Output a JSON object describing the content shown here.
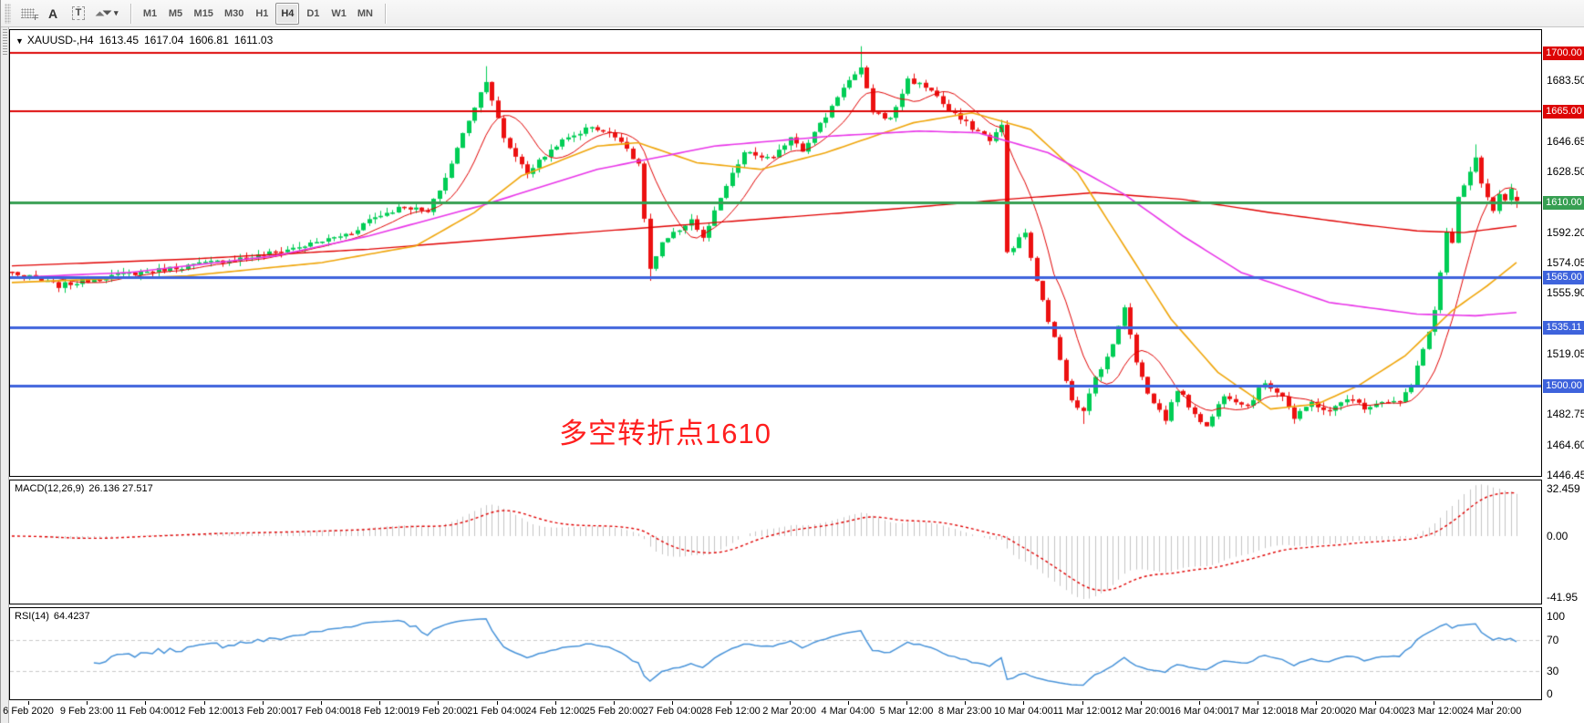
{
  "toolbar": {
    "tool_a_label": "A",
    "tool_t_label": "T",
    "timeframes": [
      "M1",
      "M5",
      "M15",
      "M30",
      "H1",
      "H4",
      "D1",
      "W1",
      "MN"
    ],
    "active_timeframe": "H4"
  },
  "chart": {
    "title": {
      "symbol": "XAUUSD-,H4",
      "open": "1613.45",
      "high": "1617.04",
      "low": "1606.81",
      "close": "1611.03"
    },
    "annotation": {
      "text": "多空转折点1610",
      "color": "#ff1e1e"
    },
    "price_axis": {
      "ticks": [
        "1683.50",
        "1646.65",
        "1628.50",
        "1592.20",
        "1574.05",
        "1555.90",
        "1519.05",
        "1482.75",
        "1464.60",
        "1446.45"
      ]
    },
    "time_axis": {
      "labels": [
        "6 Feb 2020",
        "9 Feb 23:00",
        "11 Feb 04:00",
        "12 Feb 12:00",
        "13 Feb 20:00",
        "17 Feb 04:00",
        "18 Feb 12:00",
        "19 Feb 20:00",
        "21 Feb 04:00",
        "24 Feb 12:00",
        "25 Feb 20:00",
        "27 Feb 04:00",
        "28 Feb 12:00",
        "2 Mar 20:00",
        "4 Mar 04:00",
        "5 Mar 12:00",
        "8 Mar 23:00",
        "10 Mar 04:00",
        "11 Mar 12:00",
        "12 Mar 20:00",
        "16 Mar 04:00",
        "17 Mar 12:00",
        "18 Mar 20:00",
        "20 Mar 04:00",
        "23 Mar 12:00",
        "24 Mar 20:00"
      ]
    },
    "macd_pane": {
      "label": "MACD(12,26,9)",
      "values": "26.136 27.517",
      "scale": [
        "32.459",
        "0.00",
        "-41.95"
      ]
    },
    "rsi_pane": {
      "label": "RSI(14)",
      "value": "64.4237",
      "scale": [
        "100",
        "70",
        "30",
        "0"
      ]
    }
  },
  "chart_data": {
    "type": "candlestick",
    "symbol": "XAUUSD-",
    "timeframe": "H4",
    "title": "XAUUSD-,H4 1613.45 1617.04 1606.81 1611.03",
    "current_ohlc": {
      "open": 1613.45,
      "high": 1617.04,
      "low": 1606.81,
      "close": 1611.03
    },
    "price_axis_range": [
      1446.45,
      1713.0
    ],
    "num_candles": 258,
    "colors": {
      "bull": "#00cd55",
      "bear": "#ec1111",
      "hline_red": "#dd0505",
      "hline_green": "#379f52",
      "hline_blue": "#3e63dc",
      "ma_red": "#e00000",
      "ma_orange": "#efa50a",
      "ma_magenta": "#e835e8",
      "macd_histogram": "#c4c4c4",
      "macd_signal": "#e00000",
      "rsi_line": "#4893d9",
      "rsi_levels": "#c8c8c8"
    },
    "close_anchors": [
      [
        0,
        1568
      ],
      [
        8,
        1560
      ],
      [
        14,
        1564
      ],
      [
        17,
        1566
      ],
      [
        24,
        1569
      ],
      [
        30,
        1572
      ],
      [
        42,
        1578
      ],
      [
        51,
        1585
      ],
      [
        58,
        1592
      ],
      [
        61,
        1600
      ],
      [
        67,
        1608
      ],
      [
        71,
        1604
      ],
      [
        74,
        1625
      ],
      [
        78,
        1660
      ],
      [
        81,
        1684
      ],
      [
        84,
        1648
      ],
      [
        88,
        1628
      ],
      [
        93,
        1645
      ],
      [
        99,
        1656
      ],
      [
        104,
        1648
      ],
      [
        107,
        1632
      ],
      [
        109,
        1570
      ],
      [
        111,
        1585
      ],
      [
        116,
        1600
      ],
      [
        118,
        1588
      ],
      [
        122,
        1620
      ],
      [
        125,
        1640
      ],
      [
        130,
        1636
      ],
      [
        133,
        1650
      ],
      [
        135,
        1642
      ],
      [
        139,
        1662
      ],
      [
        142,
        1680
      ],
      [
        145,
        1690
      ],
      [
        147,
        1665
      ],
      [
        150,
        1660
      ],
      [
        153,
        1684
      ],
      [
        157,
        1678
      ],
      [
        160,
        1665
      ],
      [
        164,
        1655
      ],
      [
        167,
        1648
      ],
      [
        169,
        1656
      ],
      [
        170,
        1580
      ],
      [
        173,
        1592
      ],
      [
        175,
        1562
      ],
      [
        178,
        1528
      ],
      [
        181,
        1492
      ],
      [
        183,
        1484
      ],
      [
        185,
        1505
      ],
      [
        188,
        1524
      ],
      [
        190,
        1548
      ],
      [
        192,
        1515
      ],
      [
        194,
        1495
      ],
      [
        197,
        1480
      ],
      [
        199,
        1498
      ],
      [
        201,
        1488
      ],
      [
        204,
        1475
      ],
      [
        207,
        1495
      ],
      [
        211,
        1488
      ],
      [
        214,
        1502
      ],
      [
        217,
        1494
      ],
      [
        219,
        1480
      ],
      [
        222,
        1490
      ],
      [
        225,
        1484
      ],
      [
        228,
        1493
      ],
      [
        231,
        1487
      ],
      [
        234,
        1491
      ],
      [
        237,
        1490
      ],
      [
        239,
        1500
      ],
      [
        241,
        1522
      ],
      [
        243,
        1545
      ],
      [
        244,
        1568
      ],
      [
        245,
        1592
      ],
      [
        246,
        1585
      ],
      [
        247,
        1612
      ],
      [
        249,
        1628
      ],
      [
        250,
        1636
      ],
      [
        251,
        1622
      ],
      [
        252,
        1612
      ],
      [
        253,
        1605
      ],
      [
        254,
        1614
      ],
      [
        255,
        1610
      ],
      [
        256,
        1617
      ],
      [
        257,
        1611
      ]
    ],
    "wick_overrides": [
      [
        81,
        "high",
        1692
      ],
      [
        109,
        "low",
        1563
      ],
      [
        145,
        "high",
        1704
      ],
      [
        183,
        "low",
        1477
      ],
      [
        250,
        "high",
        1645
      ]
    ],
    "horizontal_lines": [
      {
        "price": 1700.0,
        "label": "1700.00",
        "color": "#dd0505",
        "width": 2
      },
      {
        "price": 1665.0,
        "label": "1665.00",
        "color": "#dd0505",
        "width": 2
      },
      {
        "price": 1610.0,
        "label": "1610.00",
        "color": "#379f52",
        "width": 3
      },
      {
        "price": 1565.0,
        "label": "1565.00",
        "color": "#3e63dc",
        "width": 3
      },
      {
        "price": 1535.11,
        "label": "1535.11",
        "color": "#3e63dc",
        "width": 3
      },
      {
        "price": 1500.0,
        "label": "1500.00",
        "color": "#3e63dc",
        "width": 3
      }
    ],
    "moving_averages": [
      {
        "name": "ma-fast-red",
        "type": "sma",
        "period": 9,
        "color": "#e00000",
        "line_width": 1
      },
      {
        "name": "ma-long-red",
        "type": "anchors",
        "color": "#e00000",
        "line_width": 1.4,
        "points": [
          [
            0,
            1572
          ],
          [
            30,
            1576
          ],
          [
            61,
            1582
          ],
          [
            90,
            1590
          ],
          [
            120,
            1598
          ],
          [
            150,
            1606
          ],
          [
            170,
            1612
          ],
          [
            185,
            1616
          ],
          [
            200,
            1612
          ],
          [
            215,
            1604
          ],
          [
            230,
            1597
          ],
          [
            240,
            1593
          ],
          [
            248,
            1592
          ],
          [
            257,
            1596
          ]
        ]
      },
      {
        "name": "ma-medium-orange",
        "type": "anchors",
        "color": "#efa50a",
        "line_width": 1.6,
        "points": [
          [
            0,
            1562
          ],
          [
            30,
            1566
          ],
          [
            53,
            1574
          ],
          [
            69,
            1584
          ],
          [
            79,
            1604
          ],
          [
            87,
            1626
          ],
          [
            100,
            1644
          ],
          [
            107,
            1646
          ],
          [
            117,
            1634
          ],
          [
            128,
            1630
          ],
          [
            139,
            1640
          ],
          [
            154,
            1658
          ],
          [
            164,
            1664
          ],
          [
            174,
            1654
          ],
          [
            182,
            1628
          ],
          [
            190,
            1584
          ],
          [
            198,
            1540
          ],
          [
            206,
            1508
          ],
          [
            215,
            1486
          ],
          [
            223,
            1489
          ],
          [
            230,
            1500
          ],
          [
            238,
            1518
          ],
          [
            246,
            1545
          ],
          [
            252,
            1560
          ],
          [
            257,
            1574
          ]
        ]
      },
      {
        "name": "ma-slow-magenta",
        "type": "anchors",
        "color": "#e835e8",
        "line_width": 1.6,
        "points": [
          [
            0,
            1565
          ],
          [
            20,
            1568
          ],
          [
            45,
            1578
          ],
          [
            61,
            1590
          ],
          [
            80,
            1608
          ],
          [
            100,
            1630
          ],
          [
            120,
            1644
          ],
          [
            140,
            1650
          ],
          [
            155,
            1653
          ],
          [
            165,
            1652
          ],
          [
            177,
            1640
          ],
          [
            190,
            1615
          ],
          [
            200,
            1590
          ],
          [
            210,
            1568
          ],
          [
            225,
            1550
          ],
          [
            240,
            1543
          ],
          [
            250,
            1542
          ],
          [
            257,
            1544
          ]
        ]
      }
    ],
    "indicators": {
      "macd": {
        "fast": 12,
        "slow": 26,
        "signal": 9,
        "current_main": 26.136,
        "current_signal": 27.517,
        "scale_max": 32.459,
        "scale_min": -41.95
      },
      "rsi": {
        "period": 14,
        "current": 64.4237,
        "levels": [
          70,
          30
        ],
        "scale": [
          100,
          70,
          30,
          0
        ]
      }
    }
  }
}
